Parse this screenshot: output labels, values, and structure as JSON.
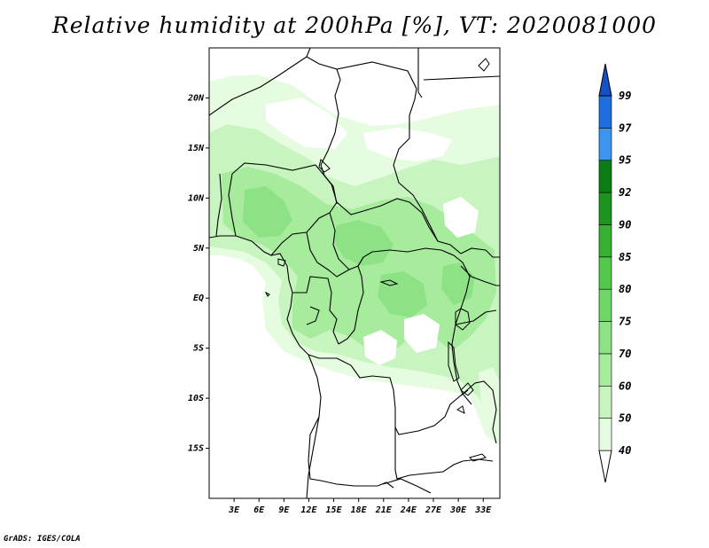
{
  "title": "Relative humidity at 200hPa [%], VT: 2020081000",
  "credit": "GrADS: IGES/COLA",
  "map": {
    "lat_ticks": [
      "20N",
      "15N",
      "10N",
      "5N",
      "EQ",
      "5S",
      "10S",
      "15S"
    ],
    "lon_ticks": [
      "3E",
      "6E",
      "9E",
      "12E",
      "15E",
      "18E",
      "21E",
      "24E",
      "27E",
      "30E",
      "33E"
    ],
    "lat_values": [
      20,
      15,
      10,
      5,
      0,
      -5,
      -10,
      -15
    ],
    "lon_values": [
      3,
      6,
      9,
      12,
      15,
      18,
      21,
      24,
      27,
      30,
      33
    ]
  },
  "colorbar": {
    "labels": [
      "40",
      "50",
      "60",
      "70",
      "75",
      "80",
      "85",
      "90",
      "92",
      "95",
      "97",
      "99"
    ],
    "colors": [
      "#ffffff",
      "#e6fce0",
      "#c8f4c0",
      "#a6ec9c",
      "#8ee286",
      "#6fd668",
      "#52c84c",
      "#36b032",
      "#1c9420",
      "#0c7c14",
      "#3c96f0",
      "#1e6ee0",
      "#1450c8"
    ]
  },
  "chart_data": {
    "type": "heatmap",
    "title": "Relative humidity at 200hPa [%], VT: 2020081000",
    "variable": "Relative humidity at 200hPa",
    "units": "%",
    "valid_time": "2020081000",
    "lon_range_deg_east": [
      0,
      35
    ],
    "lat_range_deg": [
      -20,
      25
    ],
    "contour_levels": [
      40,
      50,
      60,
      70,
      75,
      80,
      85,
      90,
      92,
      95,
      97,
      99
    ],
    "colors": [
      "#ffffff",
      "#e6fce0",
      "#c8f4c0",
      "#a6ec9c",
      "#8ee286",
      "#6fd668",
      "#52c84c",
      "#36b032",
      "#1c9420",
      "#0c7c14",
      "#3c96f0",
      "#1e6ee0",
      "#1450c8"
    ],
    "observed_range": [
      40,
      80
    ]
  }
}
